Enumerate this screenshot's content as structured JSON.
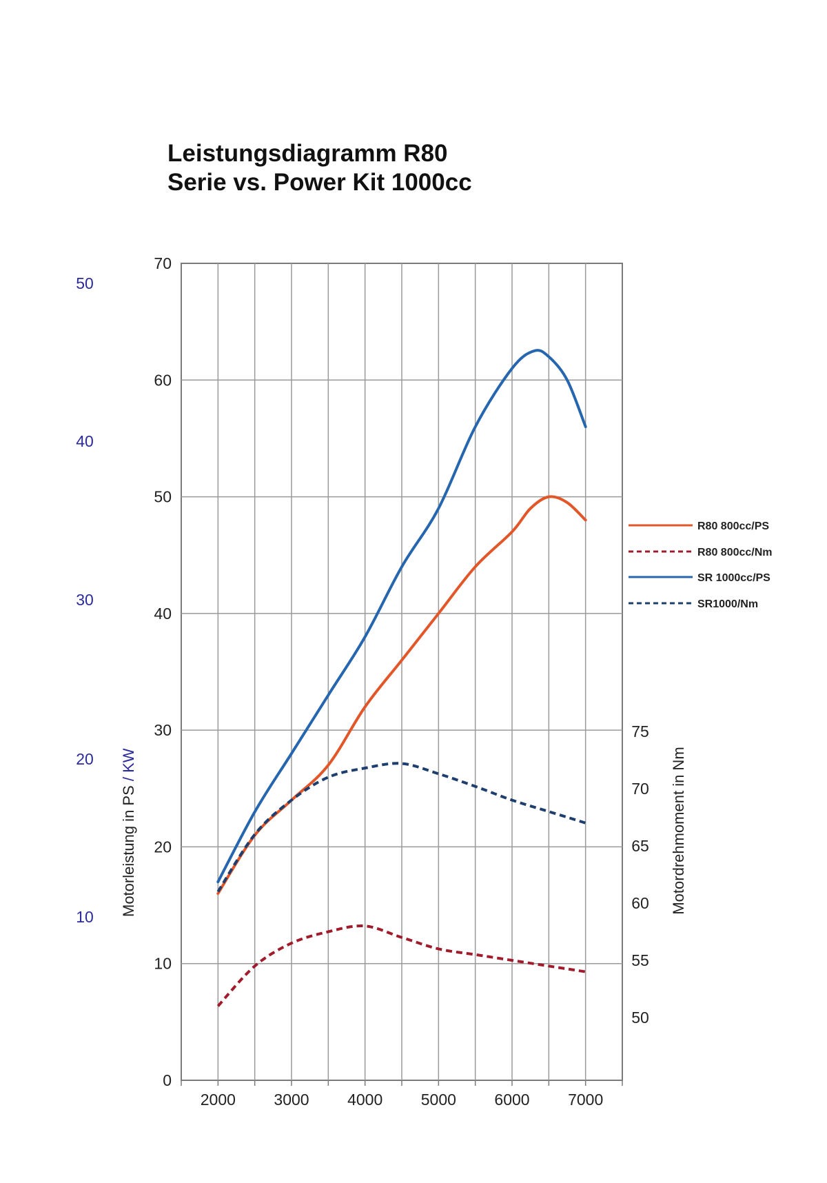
{
  "title_line1": "Leistungsdiagramm R80",
  "title_line2": "Serie vs. Power Kit 1000cc",
  "chart_data": {
    "type": "line",
    "title": "Leistungsdiagramm R80 Serie vs. Power Kit 1000cc",
    "x_ticks": [
      "2000",
      "3000",
      "4000",
      "5000",
      "6000",
      "7000"
    ],
    "xlim": [
      1500,
      7500
    ],
    "y_left": {
      "label_ps": "Motorleistung in PS",
      "label_kw": " / KW",
      "ticks": [
        "0",
        "10",
        "20",
        "30",
        "40",
        "50",
        "60",
        "70"
      ],
      "ylim": [
        0,
        70
      ]
    },
    "y_kw": {
      "ticks": [
        "10",
        "20",
        "30",
        "40",
        "50"
      ]
    },
    "y_right": {
      "label": "Motordrehmoment in Nm",
      "ticks": [
        "50",
        "55",
        "60",
        "65",
        "70",
        "75"
      ]
    },
    "grid": true,
    "legend_position": "right",
    "series": [
      {
        "name": "R80 800cc/PS",
        "axis": "PS",
        "color": "#e2572a",
        "dashed": false,
        "x": [
          2000,
          2500,
          3000,
          3500,
          4000,
          4500,
          5000,
          5500,
          6000,
          6250,
          6500,
          6750,
          7000
        ],
        "y": [
          16,
          21,
          24,
          27,
          32,
          36,
          40,
          44,
          47,
          49,
          50,
          49.5,
          48
        ]
      },
      {
        "name": "R80 800cc/Nm",
        "axis": "Nm",
        "color": "#a01c2c",
        "dashed": true,
        "x": [
          2000,
          2500,
          3000,
          3500,
          4000,
          4500,
          5000,
          5500,
          6000,
          6500,
          7000
        ],
        "y": [
          51,
          54.5,
          56.5,
          57.5,
          58,
          57,
          56,
          55.5,
          55,
          54.5,
          54
        ]
      },
      {
        "name": "SR 1000cc/PS",
        "axis": "PS",
        "color": "#2566ae",
        "dashed": false,
        "x": [
          2000,
          2500,
          3000,
          3500,
          4000,
          4500,
          5000,
          5500,
          6000,
          6300,
          6500,
          6750,
          7000
        ],
        "y": [
          17,
          23,
          28,
          33,
          38,
          44,
          49,
          56,
          61,
          62.5,
          62,
          60,
          56
        ]
      },
      {
        "name": "SR1000/Nm",
        "axis": "Nm",
        "color": "#1e3f6e",
        "dashed": true,
        "x": [
          2000,
          2500,
          3000,
          3500,
          4000,
          4500,
          5000,
          5500,
          6000,
          6500,
          7000
        ],
        "y": [
          61,
          66,
          69,
          71,
          71.8,
          72.2,
          71.3,
          70.2,
          69,
          68,
          67
        ]
      }
    ]
  }
}
